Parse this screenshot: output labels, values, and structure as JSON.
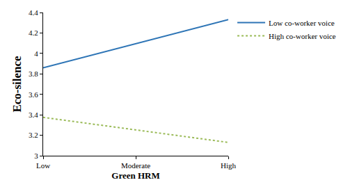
{
  "chart_data": {
    "type": "line",
    "categories": [
      "Low",
      "Moderate",
      "High"
    ],
    "x_label": "Green HRM",
    "y_label": "Eco-silence",
    "ylim": [
      3,
      4.4
    ],
    "yticks": [
      3,
      3.2,
      3.4,
      3.6,
      3.8,
      4,
      4.2,
      4.4
    ],
    "grid": false,
    "legend": "right",
    "series": [
      {
        "name": "Low co-worker voice",
        "color": "#2e75b6",
        "line_style": "solid",
        "values": [
          3.86,
          4.095,
          4.33
        ]
      },
      {
        "name": "High co-worker voice",
        "color": "#9bbb59",
        "line_style": "dot",
        "values": [
          3.375,
          3.25,
          3.13
        ]
      }
    ]
  }
}
